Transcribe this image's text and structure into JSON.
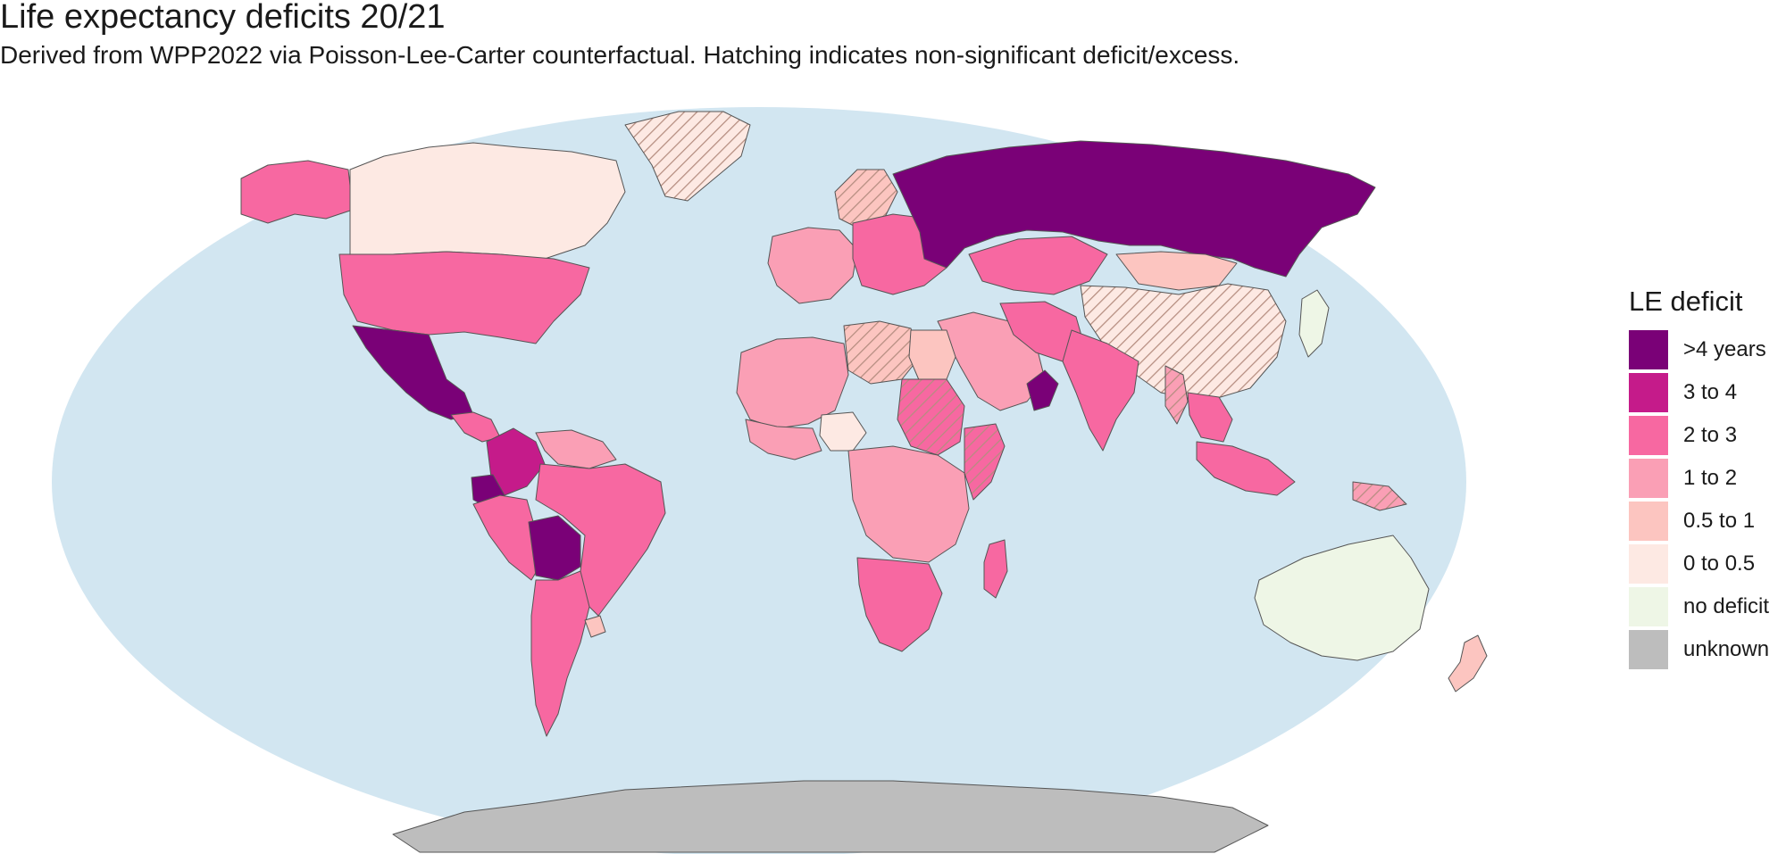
{
  "header": {
    "title": "Life expectancy deficits 20/21",
    "subtitle": "Derived from WPP2022 via Poisson-Lee-Carter counterfactual. Hatching indicates non-significant deficit/excess."
  },
  "colors": {
    "ocean": "#d2e6f1",
    "border": "#555555",
    "hatch": "#b58d80",
    "bg": "#ffffff"
  },
  "legend": {
    "title": "LE deficit",
    "items": [
      {
        "label": ">4 years",
        "color": "#7a0177"
      },
      {
        "label": "3 to 4",
        "color": "#c51b8a"
      },
      {
        "label": "2 to 3",
        "color": "#f768a1"
      },
      {
        "label": "1 to 2",
        "color": "#fa9fb5"
      },
      {
        "label": "0.5 to 1",
        "color": "#fcc5c0"
      },
      {
        "label": "0 to 0.5",
        "color": "#fde9e3"
      },
      {
        "label": "no deficit",
        "color": "#eef6e6"
      },
      {
        "label": "unknown",
        "color": "#bdbdbd"
      }
    ]
  },
  "regions": [
    {
      "name": "alaska",
      "category": "2 to 3"
    },
    {
      "name": "canada",
      "category": "0 to 0.5"
    },
    {
      "name": "greenland",
      "category": "0 to 0.5",
      "hatched": true
    },
    {
      "name": "usa",
      "category": "2 to 3"
    },
    {
      "name": "mexico",
      "category": ">4 years"
    },
    {
      "name": "central-america",
      "category": "2 to 3"
    },
    {
      "name": "colombia",
      "category": "3 to 4"
    },
    {
      "name": "venezuela",
      "category": "1 to 2"
    },
    {
      "name": "ecuador",
      "category": ">4 years"
    },
    {
      "name": "peru",
      "category": "2 to 3"
    },
    {
      "name": "bolivia",
      "category": ">4 years"
    },
    {
      "name": "brazil",
      "category": "2 to 3"
    },
    {
      "name": "argentina-chile",
      "category": "2 to 3"
    },
    {
      "name": "uruguay",
      "category": "0.5 to 1"
    },
    {
      "name": "scandinavia",
      "category": "0.5 to 1",
      "hatched": true
    },
    {
      "name": "western-europe",
      "category": "1 to 2"
    },
    {
      "name": "eastern-europe",
      "category": "2 to 3"
    },
    {
      "name": "russia",
      "category": ">4 years"
    },
    {
      "name": "kazakhstan",
      "category": "2 to 3"
    },
    {
      "name": "mongolia",
      "category": "0.5 to 1"
    },
    {
      "name": "china",
      "category": "0 to 0.5",
      "hatched": true
    },
    {
      "name": "japan",
      "category": "no deficit"
    },
    {
      "name": "middle-east",
      "category": "1 to 2"
    },
    {
      "name": "iran",
      "category": "2 to 3"
    },
    {
      "name": "oman",
      "category": ">4 years"
    },
    {
      "name": "india",
      "category": "2 to 3"
    },
    {
      "name": "myanmar",
      "category": "1 to 2",
      "hatched": true
    },
    {
      "name": "southeast-asia",
      "category": "2 to 3"
    },
    {
      "name": "north-africa",
      "category": "1 to 2"
    },
    {
      "name": "algeria-libya",
      "category": "0.5 to 1",
      "hatched": true
    },
    {
      "name": "egypt",
      "category": "0.5 to 1"
    },
    {
      "name": "west-africa",
      "category": "1 to 2"
    },
    {
      "name": "nigeria",
      "category": "0 to 0.5"
    },
    {
      "name": "sudan",
      "category": "2 to 3",
      "hatched": true
    },
    {
      "name": "horn-of-africa",
      "category": "2 to 3",
      "hatched": true
    },
    {
      "name": "central-africa",
      "category": "1 to 2"
    },
    {
      "name": "southern-africa",
      "category": "2 to 3"
    },
    {
      "name": "madagascar",
      "category": "2 to 3"
    },
    {
      "name": "indonesia",
      "category": "2 to 3"
    },
    {
      "name": "papua-new-guinea",
      "category": "1 to 2",
      "hatched": true
    },
    {
      "name": "australia",
      "category": "no deficit"
    },
    {
      "name": "new-zealand",
      "category": "0.5 to 1"
    },
    {
      "name": "antarctica",
      "category": "unknown"
    }
  ]
}
